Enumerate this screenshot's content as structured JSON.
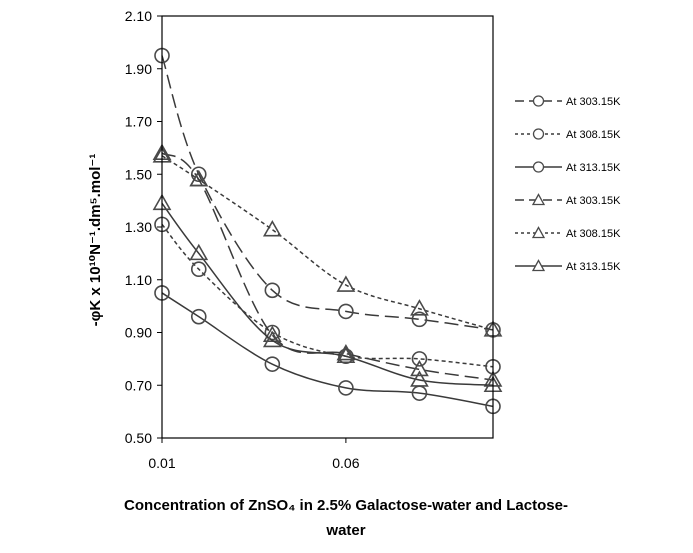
{
  "chart_data": {
    "type": "line",
    "title": "",
    "xlabel_line1": "Concentration of ZnSO₄ in 2.5% Galactose-water and Lactose-",
    "xlabel_line2": "water",
    "ylabel": "-φK x 10¹⁰N⁻¹.dm⁵.mol⁻¹",
    "xlim": [
      0.01,
      0.1
    ],
    "ylim": [
      0.5,
      2.1
    ],
    "x_ticks": [
      0.01,
      0.06
    ],
    "x_tick_labels": [
      "0.01",
      "0.06"
    ],
    "y_ticks": [
      0.5,
      0.7,
      0.9,
      1.1,
      1.3,
      1.5,
      1.7,
      1.9,
      2.1
    ],
    "y_tick_labels": [
      "0.50",
      "0.70",
      "0.90",
      "1.10",
      "1.30",
      "1.50",
      "1.70",
      "1.90",
      "2.10"
    ],
    "legend_position": "right",
    "x": [
      0.01,
      0.02,
      0.04,
      0.06,
      0.08,
      0.1
    ],
    "series": [
      {
        "name": "At 303.15K",
        "marker": "circle",
        "dash": "long-dash",
        "values": [
          1.95,
          1.5,
          1.06,
          0.98,
          0.95,
          0.91
        ]
      },
      {
        "name": "At 308.15K",
        "marker": "circle",
        "dash": "short-dash",
        "values": [
          1.31,
          1.14,
          0.9,
          0.81,
          0.8,
          0.77
        ]
      },
      {
        "name": "At 313.15K",
        "marker": "circle",
        "dash": "solid",
        "values": [
          1.05,
          0.96,
          0.78,
          0.69,
          0.67,
          0.62
        ]
      },
      {
        "name": "At 303.15K",
        "marker": "triangle",
        "dash": "long-dash",
        "values": [
          1.58,
          1.48,
          0.89,
          0.82,
          0.76,
          0.72
        ]
      },
      {
        "name": "At 308.15K",
        "marker": "triangle",
        "dash": "short-dash",
        "values": [
          1.57,
          1.48,
          1.29,
          1.08,
          0.99,
          0.91
        ]
      },
      {
        "name": "At 313.15K",
        "marker": "triangle",
        "dash": "solid",
        "values": [
          1.39,
          1.2,
          0.87,
          0.81,
          0.72,
          0.7
        ]
      }
    ],
    "colors": {
      "line": "#3a3a3a",
      "marker_stroke": "#4a4a4a",
      "axis": "#000000",
      "background": "#ffffff"
    }
  }
}
